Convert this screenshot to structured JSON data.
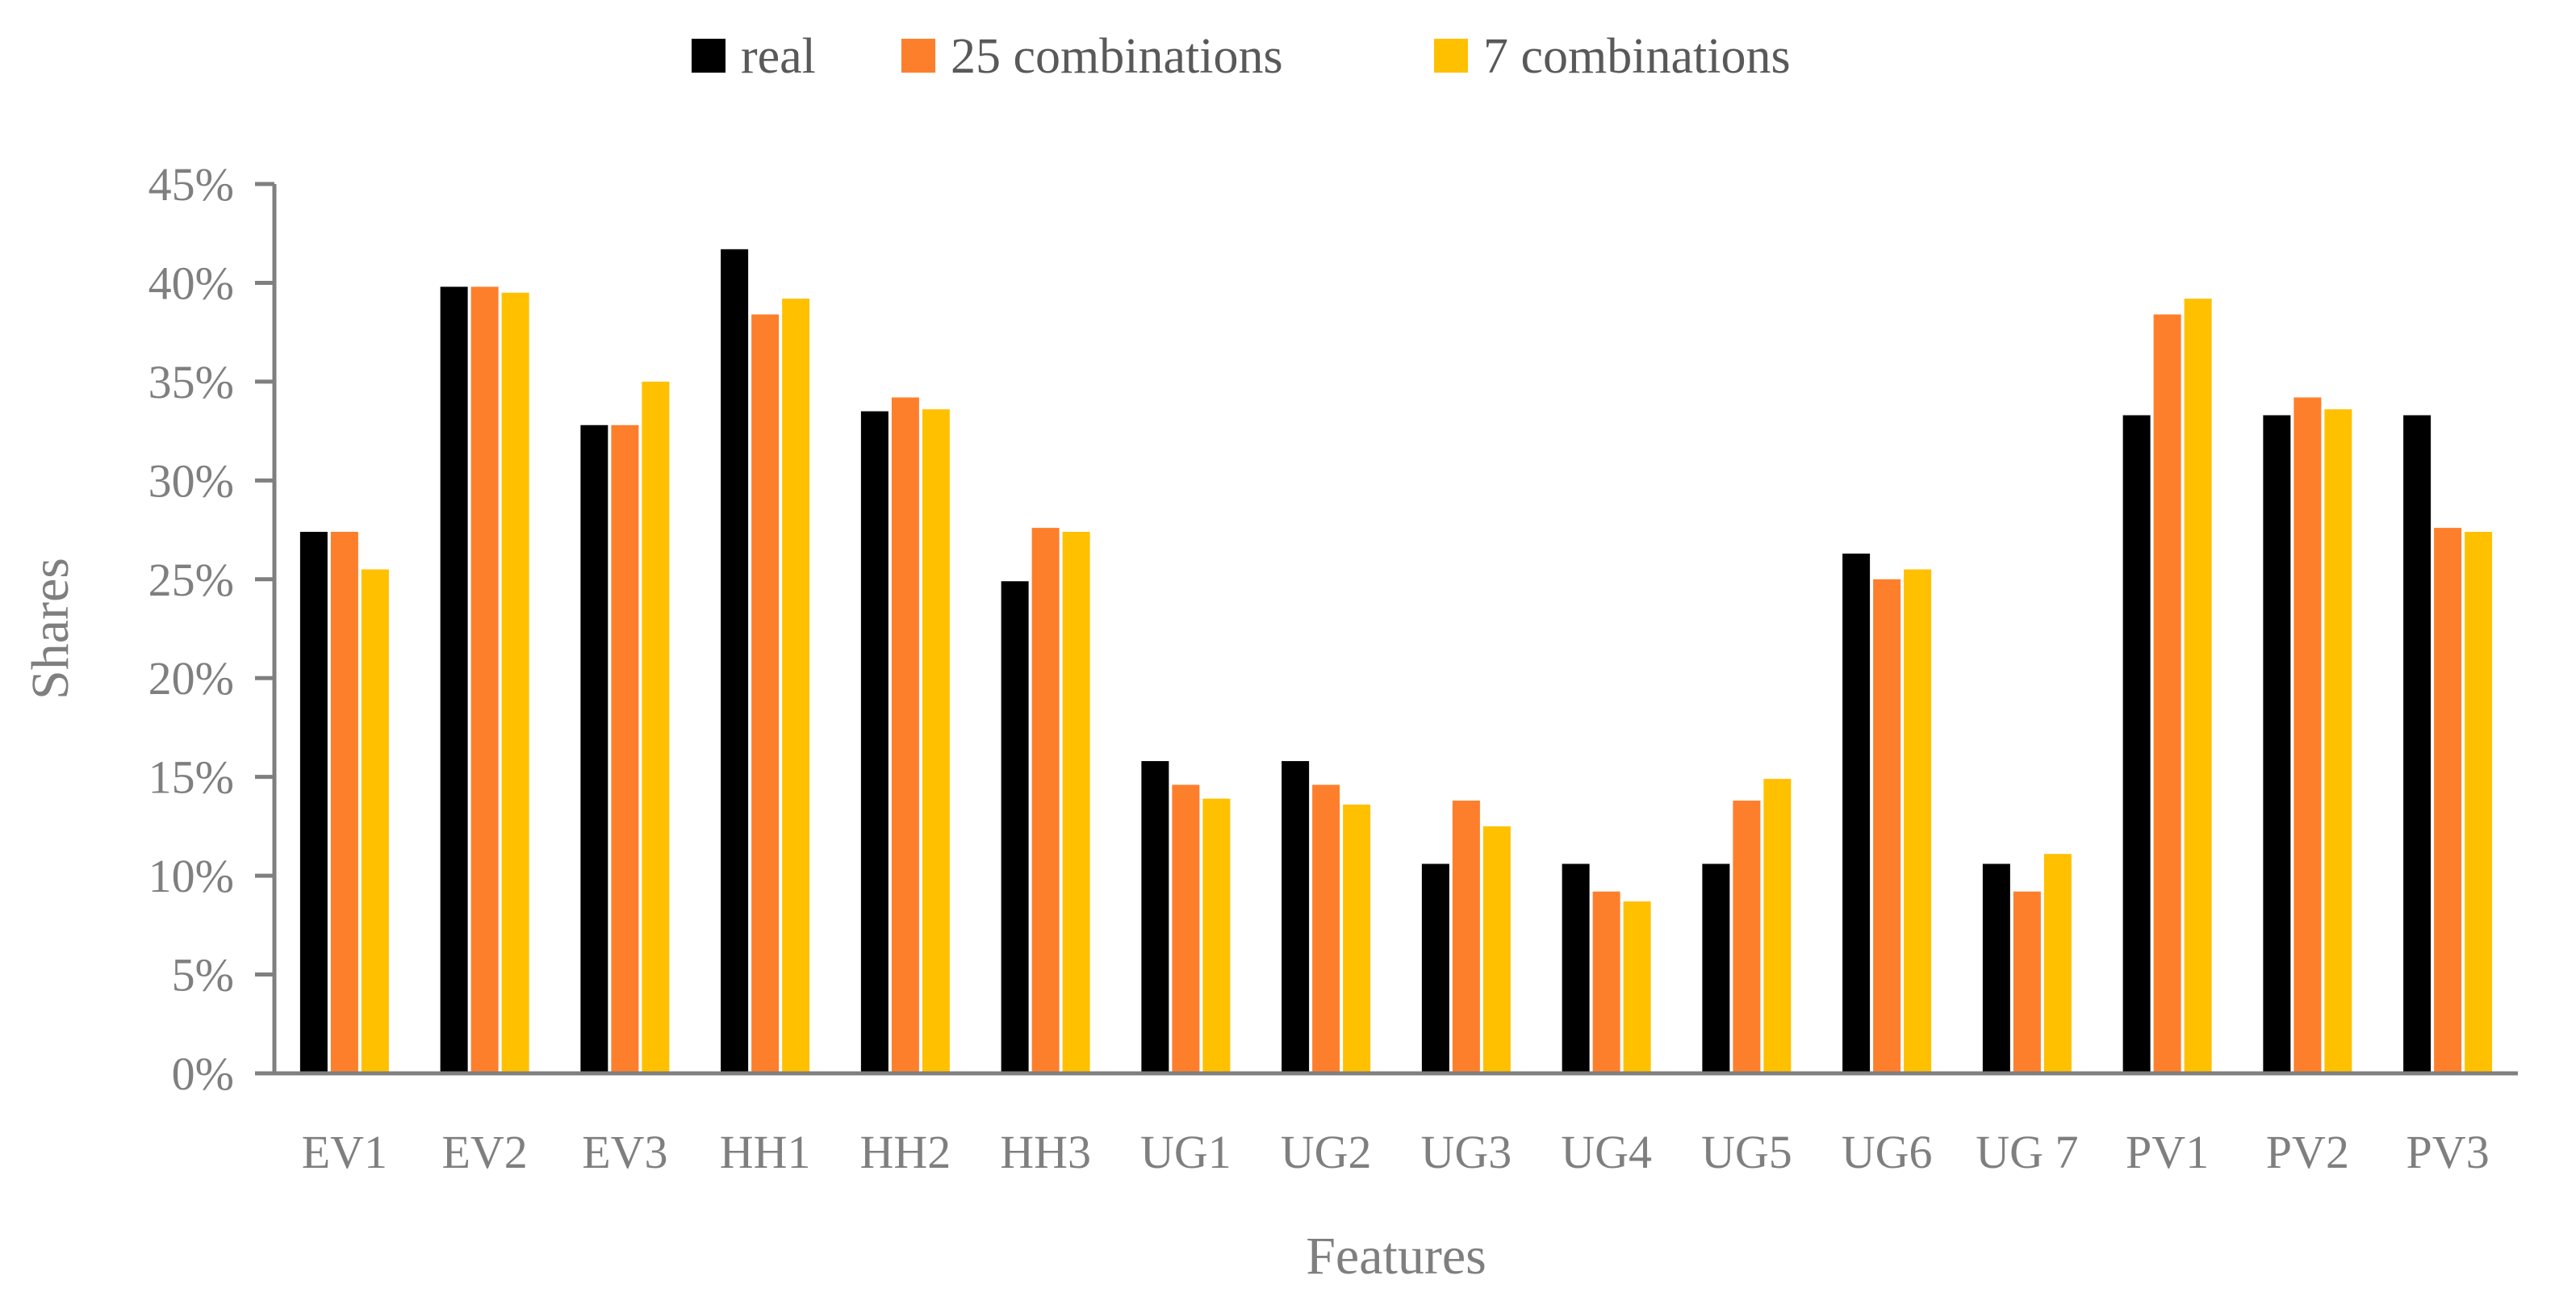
{
  "chart_data": {
    "type": "bar",
    "title": "",
    "xlabel": "Features",
    "ylabel": "Shares",
    "ylim": [
      0,
      45
    ],
    "yticks": [
      "0%",
      "5%",
      "10%",
      "15%",
      "20%",
      "25%",
      "30%",
      "35%",
      "40%",
      "45%"
    ],
    "grid": false,
    "legend_position": "top",
    "categories": [
      "EV1",
      "EV2",
      "EV3",
      "HH1",
      "HH2",
      "HH3",
      "UG1",
      "UG2",
      "UG3",
      "UG4",
      "UG5",
      "UG6",
      "UG 7",
      "PV1",
      "PV2",
      "PV3"
    ],
    "series": [
      {
        "name": "real",
        "color": "#000000",
        "values": [
          27.4,
          39.8,
          32.8,
          41.7,
          33.5,
          24.9,
          15.8,
          15.8,
          10.6,
          10.6,
          10.6,
          26.3,
          10.6,
          33.3,
          33.3,
          33.3
        ]
      },
      {
        "name": "25 combinations",
        "color": "#fd7f2c",
        "values": [
          27.4,
          39.8,
          32.8,
          38.4,
          34.2,
          27.6,
          14.6,
          14.6,
          13.8,
          9.2,
          13.8,
          25.0,
          9.2,
          38.4,
          34.2,
          27.6
        ]
      },
      {
        "name": "7 combinations",
        "color": "#ffc000",
        "values": [
          25.5,
          39.5,
          35.0,
          39.2,
          33.6,
          27.4,
          13.9,
          13.6,
          12.5,
          8.7,
          14.9,
          25.5,
          11.1,
          39.2,
          33.6,
          27.4
        ]
      }
    ]
  }
}
